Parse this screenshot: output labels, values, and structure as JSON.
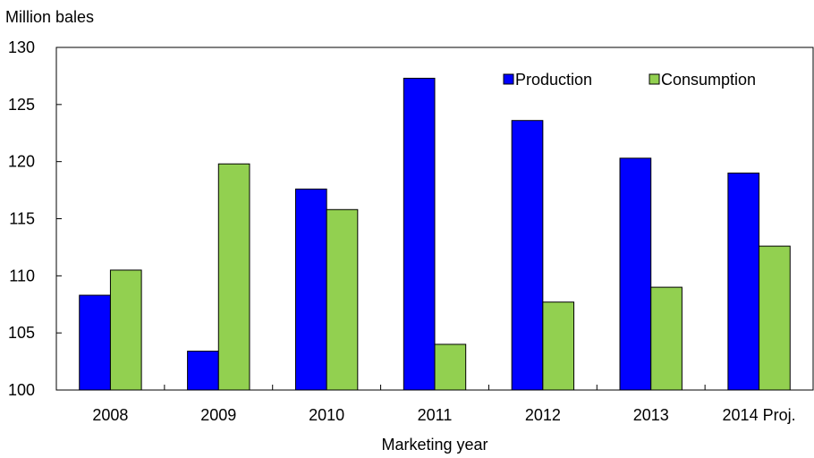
{
  "chart_data": {
    "type": "bar",
    "ylabel": "Million bales",
    "xlabel": "Marketing year",
    "categories": [
      "2008",
      "2009",
      "2010",
      "2011",
      "2012",
      "2013",
      "2014 Proj."
    ],
    "ylim": [
      100,
      130
    ],
    "yticks": [
      100,
      105,
      110,
      115,
      120,
      125,
      130
    ],
    "legend_position": "top-right",
    "series": [
      {
        "name": "Production",
        "color": "#0000FF",
        "values": [
          108.3,
          103.4,
          117.6,
          127.3,
          123.6,
          120.3,
          119.0
        ]
      },
      {
        "name": "Consumption",
        "color": "#92D050",
        "values": [
          110.5,
          119.8,
          115.8,
          104.0,
          107.7,
          109.0,
          112.6
        ]
      }
    ]
  }
}
